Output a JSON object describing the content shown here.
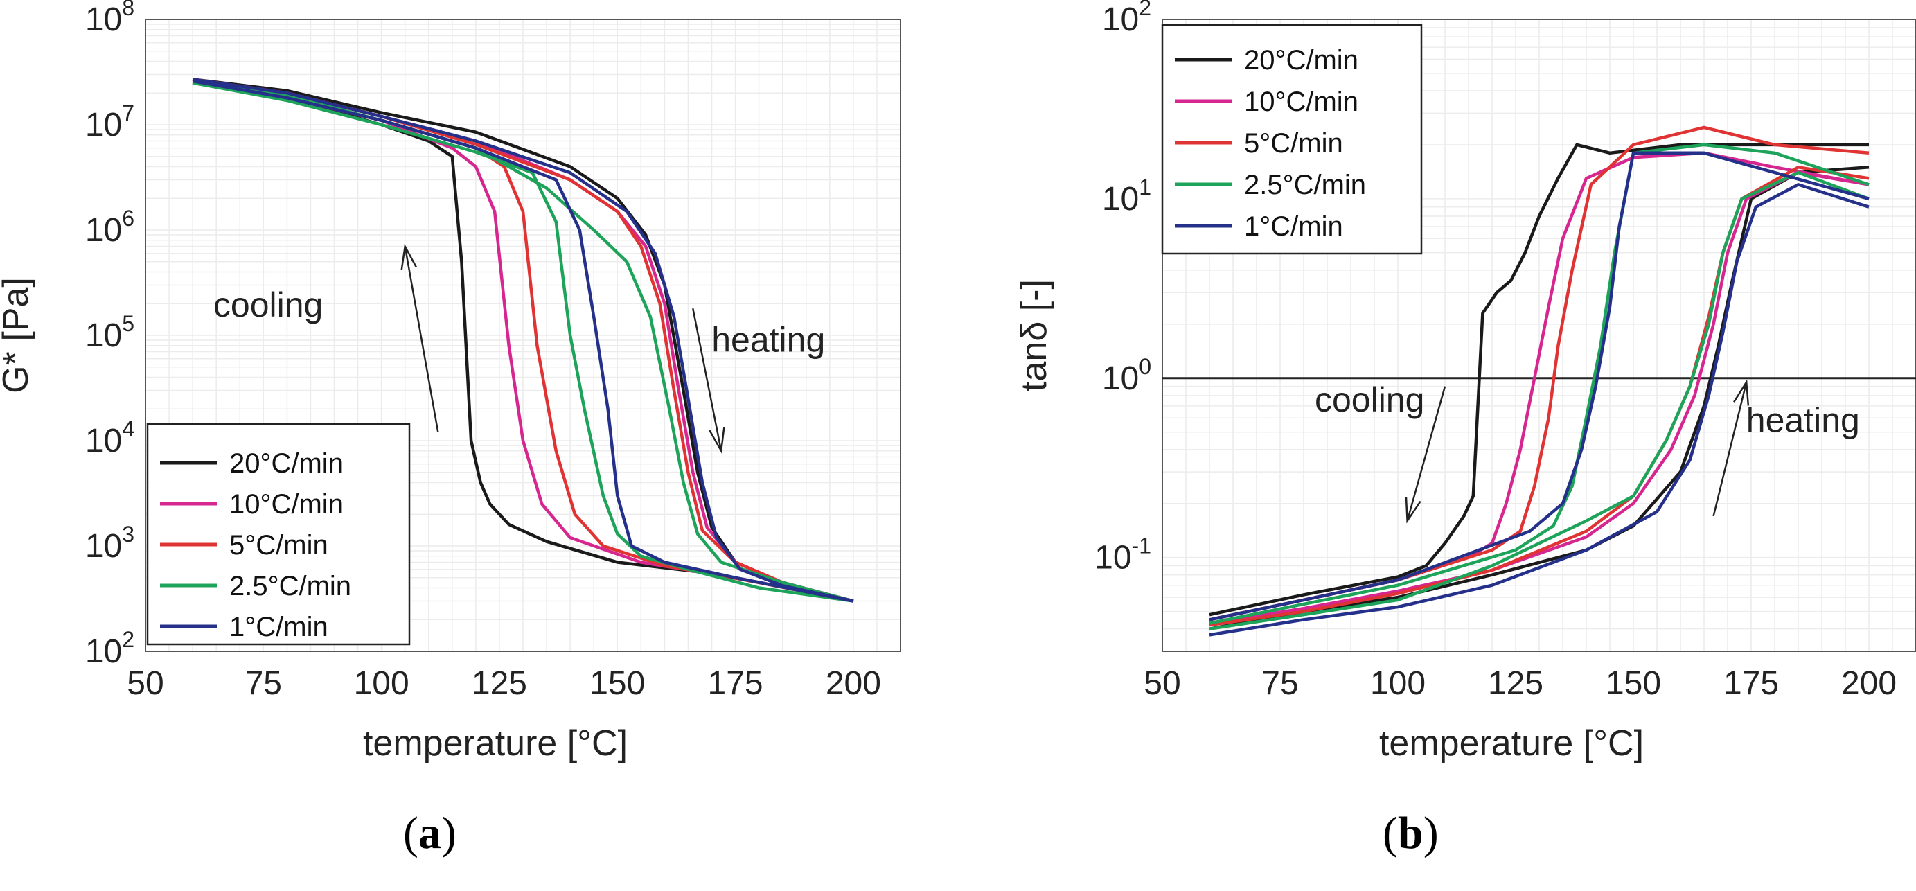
{
  "chart_data": [
    {
      "panel": "a",
      "type": "line",
      "xlabel": "temperature [°C]",
      "ylabel": "G* [Pa]",
      "xlim": [
        50,
        210
      ],
      "ylim": [
        100,
        100000000
      ],
      "yscale": "log",
      "xticks": [
        50,
        75,
        100,
        125,
        150,
        175,
        200
      ],
      "yticks": [
        {
          "value": 100,
          "base": "10",
          "exp": "2"
        },
        {
          "value": 1000,
          "base": "10",
          "exp": "3"
        },
        {
          "value": 10000,
          "base": "10",
          "exp": "4"
        },
        {
          "value": 100000,
          "base": "10",
          "exp": "5"
        },
        {
          "value": 1000000,
          "base": "10",
          "exp": "6"
        },
        {
          "value": 10000000,
          "base": "10",
          "exp": "7"
        },
        {
          "value": 100000000,
          "base": "10",
          "exp": "8"
        }
      ],
      "grid": true,
      "legend_position": "bottom-left",
      "annotations": [
        {
          "text": "cooling",
          "x": 76,
          "y": 150000,
          "arrow_from": [
            112,
            12000
          ],
          "arrow_to": [
            105,
            700000
          ]
        },
        {
          "text": "heating",
          "x": 182,
          "y": 70000,
          "arrow_from": [
            166,
            180000
          ],
          "arrow_to": [
            172,
            8000
          ]
        }
      ],
      "series": [
        {
          "name": "20°C/min",
          "color": "#1a1a1a",
          "cooling": {
            "x": [
              60,
              80,
              100,
              110,
              115,
              117,
              119,
              121,
              123,
              127,
              135,
              150,
              170,
              200
            ],
            "y": [
              25000000,
              18000000,
              10000000,
              7000000,
              5000000,
              500000,
              10000,
              4000,
              2500,
              1600,
              1100,
              700,
              550,
              300
            ]
          },
          "heating": {
            "x": [
              60,
              80,
              100,
              120,
              140,
              150,
              156,
              160,
              164,
              167,
              170,
              175,
              185,
              200
            ],
            "y": [
              27000000,
              21000000,
              13000000,
              8500000,
              4000000,
              2000000,
              900000,
              300000,
              30000,
              5000,
              1500,
              700,
              450,
              300
            ]
          }
        },
        {
          "name": "10°C/min",
          "color": "#d6268f",
          "cooling": {
            "x": [
              60,
              80,
              100,
              115,
              120,
              124,
              127,
              130,
              134,
              140,
              155,
              175,
              200
            ],
            "y": [
              26000000,
              18000000,
              11000000,
              6000000,
              4000000,
              1500000,
              80000,
              10000,
              2500,
              1200,
              700,
              500,
              300
            ]
          },
          "heating": {
            "x": [
              60,
              80,
              100,
              120,
              140,
              150,
              156,
              160,
              163,
              166,
              169,
              175,
              185,
              200
            ],
            "y": [
              27000000,
              20000000,
              12000000,
              7000000,
              3000000,
              1500000,
              700000,
              200000,
              30000,
              5000,
              1500,
              700,
              450,
              300
            ]
          }
        },
        {
          "name": "5°C/min",
          "color": "#e03333",
          "cooling": {
            "x": [
              60,
              80,
              100,
              120,
              126,
              130,
              133,
              137,
              141,
              147,
              160,
              180,
              200
            ],
            "y": [
              26000000,
              18000000,
              11000000,
              6000000,
              4000000,
              1500000,
              80000,
              8000,
              2000,
              1000,
              650,
              450,
              300
            ]
          },
          "heating": {
            "x": [
              60,
              80,
              100,
              120,
              140,
              150,
              155,
              159,
              162,
              165,
              168,
              175,
              185,
              200
            ],
            "y": [
              27000000,
              20000000,
              12000000,
              6500000,
              3000000,
              1500000,
              700000,
              200000,
              30000,
              5000,
              1400,
              700,
              450,
              300
            ]
          }
        },
        {
          "name": "2.5°C/min",
          "color": "#1ea35a",
          "cooling": {
            "x": [
              60,
              80,
              100,
              120,
              132,
              137,
              140,
              143,
              147,
              150,
              155,
              165,
              180,
              200
            ],
            "y": [
              25000000,
              17000000,
              10000000,
              5500000,
              3500000,
              1200000,
              100000,
              20000,
              3000,
              1300,
              800,
              600,
              400,
              300
            ]
          },
          "heating": {
            "x": [
              60,
              80,
              100,
              120,
              135,
              145,
              152,
              157,
              161,
              164,
              167,
              172,
              185,
              200
            ],
            "y": [
              26000000,
              19000000,
              11000000,
              6000000,
              2500000,
              1000000,
              500000,
              150000,
              20000,
              4000,
              1300,
              700,
              450,
              300
            ]
          }
        },
        {
          "name": "1°C/min",
          "color": "#25308a",
          "cooling": {
            "x": [
              60,
              80,
              100,
              120,
              137,
              142,
              145,
              148,
              150,
              153,
              160,
              175,
              200
            ],
            "y": [
              26000000,
              18000000,
              11000000,
              6000000,
              3000000,
              1000000,
              150000,
              20000,
              3000,
              1000,
              700,
              500,
              300
            ]
          },
          "heating": {
            "x": [
              60,
              80,
              100,
              120,
              140,
              152,
              158,
              162,
              165,
              168,
              171,
              176,
              185,
              200
            ],
            "y": [
              27000000,
              20000000,
              12000000,
              7000000,
              3500000,
              1500000,
              600000,
              150000,
              25000,
              4000,
              1200,
              600,
              420,
              300
            ]
          }
        }
      ]
    },
    {
      "panel": "b",
      "type": "line",
      "xlabel": "temperature [°C]",
      "ylabel": "tanδ [-]",
      "xlim": [
        50,
        210
      ],
      "ylim": [
        0.03,
        100
      ],
      "yscale": "log",
      "xticks": [
        50,
        75,
        100,
        125,
        150,
        175,
        200
      ],
      "yticks": [
        {
          "value": 0.1,
          "base": "10",
          "exp": "-1"
        },
        {
          "value": 1,
          "base": "10",
          "exp": "0"
        },
        {
          "value": 10,
          "base": "10",
          "exp": "1"
        },
        {
          "value": 100,
          "base": "10",
          "exp": "2"
        }
      ],
      "reference_line_y": 1,
      "grid": true,
      "legend_position": "top-left",
      "annotations": [
        {
          "text": "cooling",
          "x": 94,
          "y": 0.65,
          "arrow_from": [
            110,
            0.9
          ],
          "arrow_to": [
            102,
            0.16
          ]
        },
        {
          "text": "heating",
          "x": 186,
          "y": 0.5,
          "arrow_from": [
            167,
            0.17
          ],
          "arrow_to": [
            174,
            0.95
          ]
        }
      ],
      "series": [
        {
          "name": "20°C/min",
          "color": "#1a1a1a",
          "cooling": {
            "x": [
              60,
              80,
              100,
              106,
              110,
              114,
              116,
              118,
              121,
              124,
              127,
              130,
              134,
              138,
              145,
              160,
              180,
              200
            ],
            "y": [
              0.048,
              0.062,
              0.078,
              0.09,
              0.12,
              0.17,
              0.22,
              2.3,
              3,
              3.5,
              5,
              8,
              13,
              20,
              18,
              20,
              20,
              20
            ]
          },
          "heating": {
            "x": [
              60,
              80,
              100,
              120,
              140,
              150,
              160,
              165,
              168,
              171,
              175,
              185,
              200
            ],
            "y": [
              0.04,
              0.05,
              0.06,
              0.08,
              0.11,
              0.15,
              0.3,
              0.7,
              1.5,
              3.5,
              10,
              14,
              15
            ]
          }
        },
        {
          "name": "10°C/min",
          "color": "#d6268f",
          "cooling": {
            "x": [
              60,
              80,
              100,
              115,
              120,
              123,
              126,
              129,
              132,
              135,
              140,
              150,
              165,
              180,
              200
            ],
            "y": [
              0.045,
              0.058,
              0.075,
              0.1,
              0.12,
              0.2,
              0.4,
              1,
              2.5,
              6,
              13,
              17,
              18,
              15,
              12
            ]
          },
          "heating": {
            "x": [
              60,
              80,
              100,
              120,
              140,
              150,
              158,
              163,
              167,
              170,
              174,
              185,
              200
            ],
            "y": [
              0.043,
              0.052,
              0.065,
              0.085,
              0.13,
              0.2,
              0.4,
              0.8,
              2,
              5,
              10,
              14,
              12
            ]
          }
        },
        {
          "name": "5°C/min",
          "color": "#e03333",
          "cooling": {
            "x": [
              60,
              80,
              100,
              120,
              126,
              129,
              132,
              134,
              137,
              141,
              150,
              165,
              180,
              200
            ],
            "y": [
              0.045,
              0.058,
              0.075,
              0.11,
              0.14,
              0.25,
              0.6,
              1.5,
              4,
              12,
              20,
              25,
              20,
              18
            ]
          },
          "heating": {
            "x": [
              60,
              80,
              100,
              120,
              140,
              150,
              157,
              162,
              166,
              169,
              173,
              185,
              200
            ],
            "y": [
              0.042,
              0.05,
              0.063,
              0.085,
              0.14,
              0.22,
              0.45,
              0.9,
              2.2,
              5,
              10,
              15,
              13
            ]
          }
        },
        {
          "name": "2.5°C/min",
          "color": "#1ea35a",
          "cooling": {
            "x": [
              60,
              80,
              100,
              125,
              133,
              137,
              140,
              143,
              146,
              150,
              165,
              180,
              200
            ],
            "y": [
              0.043,
              0.055,
              0.07,
              0.11,
              0.15,
              0.25,
              0.6,
              1.5,
              5,
              18,
              20,
              18,
              12
            ]
          },
          "heating": {
            "x": [
              60,
              80,
              100,
              120,
              140,
              150,
              157,
              162,
              166,
              169,
              173,
              185,
              200
            ],
            "y": [
              0.04,
              0.048,
              0.058,
              0.09,
              0.16,
              0.22,
              0.45,
              0.9,
              2,
              5,
              10,
              14,
              10
            ]
          }
        },
        {
          "name": "1°C/min",
          "color": "#25308a",
          "cooling": {
            "x": [
              60,
              80,
              100,
              128,
              135,
              139,
              142,
              145,
              147,
              150,
              165,
              180,
              200
            ],
            "y": [
              0.045,
              0.058,
              0.075,
              0.14,
              0.2,
              0.4,
              0.9,
              2.5,
              7,
              18,
              18,
              14,
              10
            ]
          },
          "heating": {
            "x": [
              60,
              80,
              100,
              120,
              140,
              155,
              162,
              166,
              169,
              172,
              176,
              185,
              200
            ],
            "y": [
              0.037,
              0.045,
              0.053,
              0.07,
              0.11,
              0.18,
              0.35,
              0.8,
              1.8,
              4.5,
              9,
              12,
              9
            ]
          }
        }
      ]
    }
  ],
  "panel_labels": {
    "a": "a",
    "b": "b"
  }
}
